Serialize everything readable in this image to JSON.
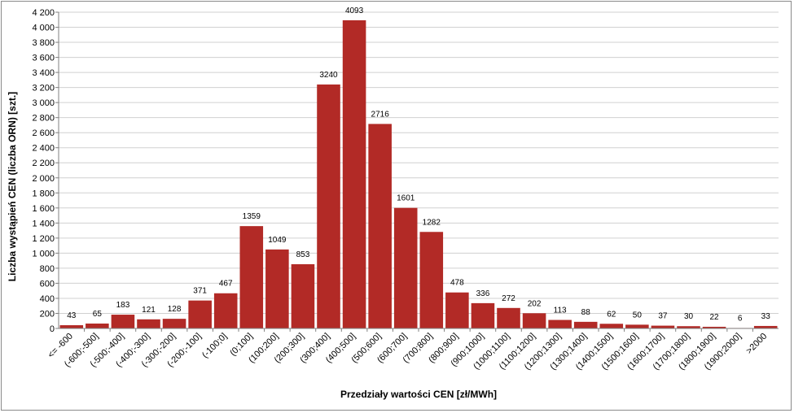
{
  "chart_data": {
    "type": "bar",
    "xlabel": "Przedziały wartości CEN  [zł/MWh]",
    "ylabel": "Liczba wystąpień CEN  (liczba ORN)  [szt.]",
    "ylim": [
      0,
      4200
    ],
    "ytick_step": 200,
    "ytick_labels": [
      "0",
      "200",
      "400",
      "600",
      "800",
      "1 000",
      "1 200",
      "1 400",
      "1 600",
      "1 800",
      "2 000",
      "2 200",
      "2 400",
      "2 600",
      "2 800",
      "3 000",
      "3 200",
      "3 400",
      "3 600",
      "3 800",
      "4 000",
      "4 200"
    ],
    "grid": true,
    "legend": "none",
    "bar_color": "#b22a26",
    "categories": [
      "<= -600",
      "(-600;-500]",
      "(-500;-400]",
      "(-400;-300]",
      "(-300;-200]",
      "(-200;-100]",
      "(-100;0]",
      "(0;100]",
      "(100;200]",
      "(200;300]",
      "(300;400]",
      "(400;500]",
      "(500;600]",
      "(600;700]",
      "(700;800]",
      "(800;900]",
      "(900;1000]",
      "(1000;1100]",
      "(1100;1200]",
      "(1200;1300]",
      "(1300;1400]",
      "(1400;1500]",
      "(1500;1600]",
      "(1600;1700]",
      "(1700;1800]",
      "(1800;1900]",
      "(1900;2000]",
      ">2000"
    ],
    "values": [
      43,
      65,
      183,
      121,
      128,
      371,
      467,
      1359,
      1049,
      853,
      3240,
      4093,
      2716,
      1601,
      1282,
      478,
      336,
      272,
      202,
      113,
      88,
      62,
      50,
      37,
      30,
      22,
      6,
      33
    ]
  }
}
